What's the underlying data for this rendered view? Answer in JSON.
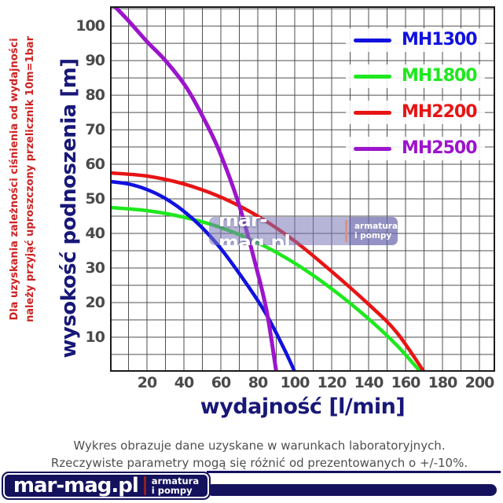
{
  "side_note": {
    "line1": "Dla uzyskania zależności ciśnienia od wydajności",
    "line2": "należy przyjąć uproszczony przelicznik 10m=1bar"
  },
  "chart_data": {
    "type": "line",
    "title": "",
    "xlabel": "wydajność  [l/min]",
    "ylabel": "wysokość podnoszenia [m]",
    "xlim": [
      0,
      208.5
    ],
    "ylim": [
      0,
      105.7
    ],
    "x_ticks": [
      20,
      40,
      60,
      80,
      100,
      120,
      140,
      160,
      180,
      200
    ],
    "y_ticks": [
      10,
      20,
      30,
      40,
      50,
      60,
      70,
      80,
      90,
      100
    ],
    "x_grid_step": 10,
    "y_grid_step": 5,
    "grid": true,
    "legend_position": "top-right",
    "series": [
      {
        "name": "MH1300",
        "color": "#1111e0",
        "points": [
          [
            0,
            55
          ],
          [
            10,
            54.3
          ],
          [
            20,
            52.7
          ],
          [
            30,
            50.1
          ],
          [
            40,
            46.4
          ],
          [
            50,
            41.6
          ],
          [
            60,
            35.6
          ],
          [
            70,
            28.4
          ],
          [
            80,
            20.6
          ],
          [
            85,
            16.2
          ],
          [
            90,
            11.2
          ],
          [
            95,
            5.8
          ],
          [
            100,
            0
          ]
        ]
      },
      {
        "name": "MH1800",
        "color": "#1ee81e",
        "points": [
          [
            0,
            47.5
          ],
          [
            20,
            46.6
          ],
          [
            40,
            44.7
          ],
          [
            60,
            41.7
          ],
          [
            80,
            37.3
          ],
          [
            100,
            31.4
          ],
          [
            120,
            24
          ],
          [
            140,
            15.3
          ],
          [
            155,
            7.8
          ],
          [
            168,
            0
          ]
        ]
      },
      {
        "name": "MH2200",
        "color": "#e81414",
        "points": [
          [
            0,
            57.5
          ],
          [
            20,
            56.6
          ],
          [
            40,
            54.3
          ],
          [
            60,
            50.5
          ],
          [
            80,
            45
          ],
          [
            100,
            37.8
          ],
          [
            120,
            29
          ],
          [
            140,
            19.5
          ],
          [
            155,
            11.5
          ],
          [
            170,
            0
          ]
        ]
      },
      {
        "name": "MH2500",
        "color": "#9c14cc",
        "points": [
          [
            2.5,
            105.7
          ],
          [
            10,
            101.5
          ],
          [
            20,
            95.5
          ],
          [
            30,
            90
          ],
          [
            41,
            82.5
          ],
          [
            50,
            74
          ],
          [
            59,
            64
          ],
          [
            70,
            48
          ],
          [
            80,
            28.5
          ],
          [
            85,
            17
          ],
          [
            90,
            0
          ]
        ]
      }
    ]
  },
  "watermark": {
    "name": "mar-mag.pl",
    "tag1": "armatura",
    "tag2": "i pompy"
  },
  "footer_note": {
    "line1": "Wykres obrazuje dane uzyskane w warunkach laboratoryjnych.",
    "line2": "Rzeczywiste parametry mogą się różnić od prezentowanych o +/-10%."
  },
  "logo": {
    "name": "mar-mag.pl",
    "tag1": "armatura",
    "tag2": "i pompy"
  },
  "colors": {
    "axis_label": "#181878",
    "tick_label": "#4a4a4a",
    "grid": "#4f4f4f",
    "plot_border": "#1a1a1a",
    "note_red": "#cc2222",
    "footer_gray": "#4f4f4f",
    "brand_navy": "#14125c"
  }
}
